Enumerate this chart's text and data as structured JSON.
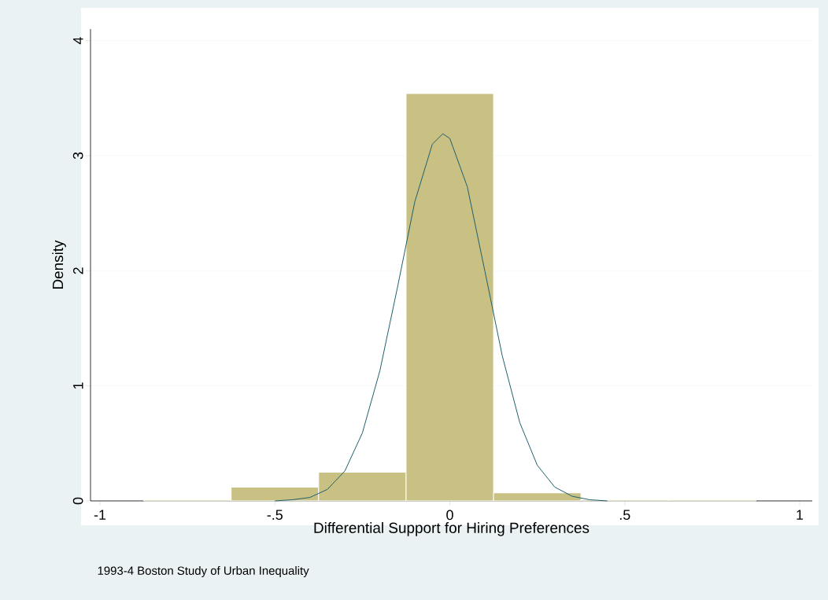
{
  "chart_data": {
    "type": "histogram",
    "xlabel": "Differential Support for Hiring Preferences",
    "ylabel": "Density",
    "annotations": [
      "1993-4 Boston Study of Urban Inequality"
    ],
    "bins": [
      -0.875,
      -0.625,
      -0.375,
      -0.125,
      0.125,
      0.375,
      0.625,
      0.875
    ],
    "values": [
      0.01,
      0.12,
      0.25,
      3.54,
      0.07,
      0.01,
      0.01
    ],
    "color": "#c9c083",
    "series": [
      {
        "type": "line",
        "color": "#1f5f6b",
        "x": [
          -0.5,
          -0.45,
          -0.4,
          -0.35,
          -0.3,
          -0.25,
          -0.2,
          -0.15,
          -0.1,
          -0.05,
          -0.02,
          0,
          0.05,
          0.1,
          0.15,
          0.2,
          0.25,
          0.3,
          0.35,
          0.4,
          0.45
        ],
        "values": [
          0.0,
          0.01,
          0.03,
          0.1,
          0.26,
          0.59,
          1.13,
          1.85,
          2.6,
          3.1,
          3.19,
          3.15,
          2.73,
          2.0,
          1.26,
          0.68,
          0.31,
          0.12,
          0.04,
          0.01,
          0.0
        ]
      }
    ],
    "xlim": [
      -1.027,
      1.036
    ],
    "ylim": [
      0,
      4.1
    ],
    "xticks": [
      -1,
      {
        "value": -0.5,
        "label": "-.5"
      },
      0,
      {
        "value": 0.5,
        "label": ".5"
      },
      1
    ],
    "yticks": [
      0,
      1,
      2,
      3,
      4
    ],
    "grid": "y"
  }
}
